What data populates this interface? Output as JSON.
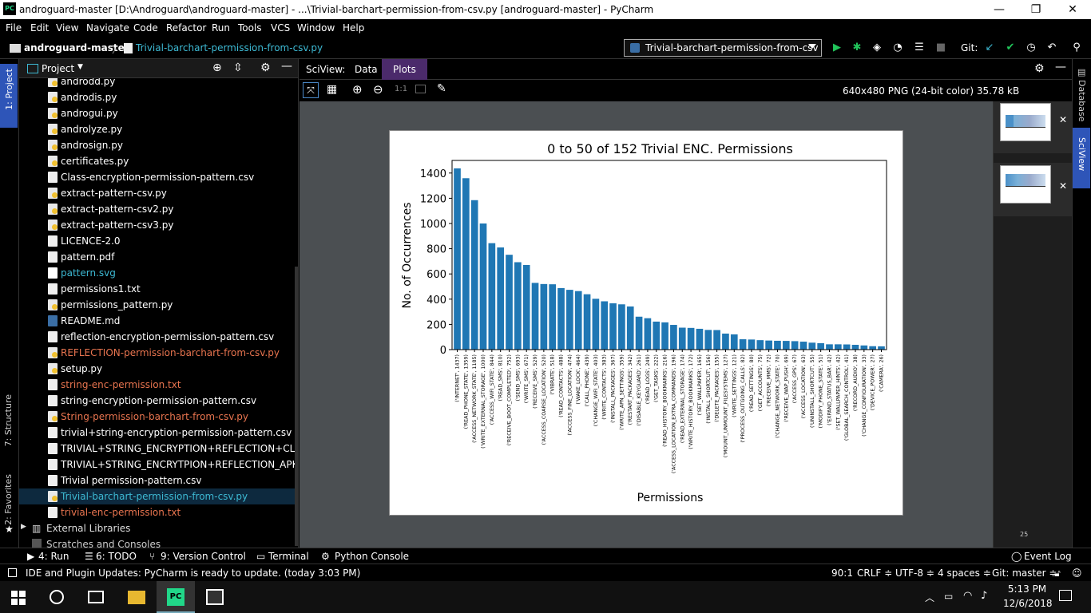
{
  "window": {
    "title": "androguard-master [D:\\Androguard\\androguard-master] - ...\\Trivial-barchart-permission-from-csv.py [androguard-master] - PyCharm",
    "logo_text": "PC",
    "minimize_icon": "—",
    "restore_icon": "❐",
    "close_icon": "✕"
  },
  "menu": [
    "File",
    "Edit",
    "View",
    "Navigate",
    "Code",
    "Refactor",
    "Run",
    "Tools",
    "VCS",
    "Window",
    "Help"
  ],
  "breadcrumb": {
    "project": "androguard-master",
    "file": "Trivial-barchart-permission-from-csv.py"
  },
  "run_config": {
    "label": "Trivial-barchart-permission-from-csv"
  },
  "toolbar": {
    "git_label": "Git:"
  },
  "left_strip": {
    "project_tab": "1: Project",
    "structure_tab": "7: Structure",
    "favorites_tab": "2: Favorites"
  },
  "project_panel": {
    "title": "Project",
    "files": [
      {
        "name": "androdd.py",
        "type": "py",
        "color": "#ffffff"
      },
      {
        "name": "androdis.py",
        "type": "py",
        "color": "#ffffff"
      },
      {
        "name": "androgui.py",
        "type": "py",
        "color": "#ffffff"
      },
      {
        "name": "androlyze.py",
        "type": "py",
        "color": "#ffffff"
      },
      {
        "name": "androsign.py",
        "type": "py",
        "color": "#ffffff"
      },
      {
        "name": "certificates.py",
        "type": "py",
        "color": "#ffffff"
      },
      {
        "name": "Class-encryption-permission-pattern.csv",
        "type": "csv",
        "color": "#ffffff"
      },
      {
        "name": "extract-pattern-csv.py",
        "type": "py",
        "color": "#ffffff"
      },
      {
        "name": "extract-pattern-csv2.py",
        "type": "py",
        "color": "#ffffff"
      },
      {
        "name": "extract-pattern-csv3.py",
        "type": "py",
        "color": "#ffffff"
      },
      {
        "name": "LICENCE-2.0",
        "type": "csv",
        "color": "#ffffff"
      },
      {
        "name": "pattern.pdf",
        "type": "pdf",
        "color": "#ffffff"
      },
      {
        "name": "pattern.svg",
        "type": "svg",
        "color": "#3db9d3"
      },
      {
        "name": "permissions1.txt",
        "type": "csv",
        "color": "#ffffff"
      },
      {
        "name": "permissions_pattern.py",
        "type": "py",
        "color": "#ffffff"
      },
      {
        "name": "README.md",
        "type": "md",
        "color": "#ffffff"
      },
      {
        "name": "reflection-encryption-permission-pattern.csv",
        "type": "csv",
        "color": "#ffffff"
      },
      {
        "name": "REFLECTION-permission-barchart-from-csv.py",
        "type": "py",
        "color": "#e8744f"
      },
      {
        "name": "setup.py",
        "type": "py",
        "color": "#ffffff"
      },
      {
        "name": "string-enc-permission.txt",
        "type": "csv",
        "color": "#e8744f"
      },
      {
        "name": "string-encryption-permission-pattern.csv",
        "type": "csv",
        "color": "#ffffff"
      },
      {
        "name": "String-permission-barchart-from-csv.py",
        "type": "py",
        "color": "#e8744f"
      },
      {
        "name": "trivial+string-encryption-permission-pattern.csv",
        "type": "csv",
        "color": "#ffffff"
      },
      {
        "name": "TRIVIAL+STRING_ENCRYPTION+REFLECTION+CLASS_ENCRYPTION",
        "type": "csv",
        "color": "#ffffff"
      },
      {
        "name": "TRIVIAL+STRING_ENCRYTPION+REFLECTION_APK-encryption",
        "type": "csv",
        "color": "#ffffff"
      },
      {
        "name": "Trivial permission-pattern.csv",
        "type": "csv",
        "color": "#ffffff"
      },
      {
        "name": "Trivial-barchart-permission-from-csv.py",
        "type": "py",
        "color": "#3db9d3"
      },
      {
        "name": "trivial-enc-permission.txt",
        "type": "csv",
        "color": "#e8744f"
      }
    ],
    "external_libraries": "External Libraries",
    "scratches": "Scratches and Consoles"
  },
  "sciview": {
    "label": "SciView:",
    "tabs": [
      "Data",
      "Plots"
    ],
    "active_tab": "Plots",
    "image_info": "640x480 PNG (24-bit color) 35.78 kB",
    "zoom_label": "1:1",
    "thumb_count": "25"
  },
  "right_strip": {
    "database_tab": "Database",
    "sciview_tab": "SciView"
  },
  "bottom_tools": {
    "run": "4: Run",
    "todo": "6: TODO",
    "vcs": "9: Version Control",
    "terminal": "Terminal",
    "console": "Python Console",
    "event_log": "Event Log"
  },
  "status": {
    "message": "IDE and Plugin Updates: PyCharm is ready to update. (today 3:03 PM)",
    "position": "90:1",
    "line_sep": "CRLF ≑",
    "encoding": "UTF-8 ≑",
    "indent": "4 spaces ≑",
    "git": "Git: master ≑"
  },
  "taskbar": {
    "time": "5:13 PM",
    "date": "12/6/2018"
  },
  "colors": {
    "bar": "#1f77b4",
    "accent_selection": "#0d293e",
    "file_modified": "#e8744f",
    "file_new": "#3db9d3"
  },
  "chart_data": {
    "type": "bar",
    "title": "0 to 50 of 152 Trivial ENC. Permissions",
    "xlabel": "Permissions",
    "ylabel": "No. of Occurrences",
    "ylim": [
      0,
      1500
    ],
    "yticks": [
      0,
      200,
      400,
      600,
      800,
      1000,
      1200,
      1400
    ],
    "grid": false,
    "categories": [
      "('INTERNET', 1437)",
      "('READ_PHONE_STATE', 1359)",
      "('ACCESS_NETWORK_STATE', 1185)",
      "('WRITE_EXTERNAL_STORAGE', 1000)",
      "('ACCESS_WIFI_STATE', 844)",
      "('READ_SMS', 810)",
      "('RECEIVE_BOOT_COMPLETED', 752)",
      "('SEND_SMS', 693)",
      "('WRITE_SMS', 671)",
      "('RECEIVE_SMS', 529)",
      "('ACCESS_COARSE_LOCATION', 520)",
      "('VIBRATE', 518)",
      "('READ_CONTACTS', 488)",
      "('ACCESS_FINE_LOCATION', 474)",
      "('WAKE_LOCK', 464)",
      "('CALL_PHONE', 439)",
      "('CHANGE_WIFI_STATE', 403)",
      "('WRITE_CONTACTS', 383)",
      "('INSTALL_PACKAGES', 367)",
      "('WRITE_APN_SETTINGS', 359)",
      "('RESTART_PACKAGES', 342)",
      "('DISABLE_KEYGUARD', 261)",
      "('READ_LOGS', 249)",
      "('GET_TASKS', 222)",
      "('READ_HISTORY_BOOKMARKS', 216)",
      "('ACCESS_LOCATION_EXTRA_COMMANDS', 196)",
      "('READ_EXTERNAL_STORAGE', 174)",
      "('WRITE_HISTORY_BOOKMARKS', 172)",
      "('SET_WALLPAPER', 165)",
      "('INSTALL_SHORTCUT', 156)",
      "('DELETE_PACKAGES', 155)",
      "('MOUNT_UNMOUNT_FILESYSTEMS', 127)",
      "('WRITE_SETTINGS', 121)",
      "('PROCESS_OUTGOING_CALLS', 82)",
      "('READ_SETTINGS', 80)",
      "('GET_ACCOUNTS', 75)",
      "('RECEIVE_MMS', 72)",
      "('CHANGE_NETWORK_STATE', 70)",
      "('RECEIVE_WAP_PUSH', 69)",
      "('ACCESS_GPS', 67)",
      "('ACCESS_LOCATION', 63)",
      "('UNINSTALL_SHORTCUT', 55)",
      "('MODIFY_PHONE_STATE', 51)",
      "('EXPAND_STATUS_BAR', 42)",
      "('SET_WALLPAPER_HINTS', 42)",
      "('GLOBAL_SEARCH_CONTROL', 41)",
      "('RECORD_AUDIO', 38)",
      "('CHANGE_CONFIGURATION', 33)",
      "('DEVICE_POWER', 27)",
      "('CAMERA', 26)"
    ],
    "values": [
      1437,
      1359,
      1185,
      1000,
      844,
      810,
      752,
      693,
      671,
      529,
      520,
      518,
      488,
      474,
      464,
      439,
      403,
      383,
      367,
      359,
      342,
      261,
      249,
      222,
      216,
      196,
      174,
      172,
      165,
      156,
      155,
      127,
      121,
      82,
      80,
      75,
      72,
      70,
      69,
      67,
      63,
      55,
      51,
      42,
      42,
      41,
      38,
      33,
      27,
      26
    ]
  }
}
